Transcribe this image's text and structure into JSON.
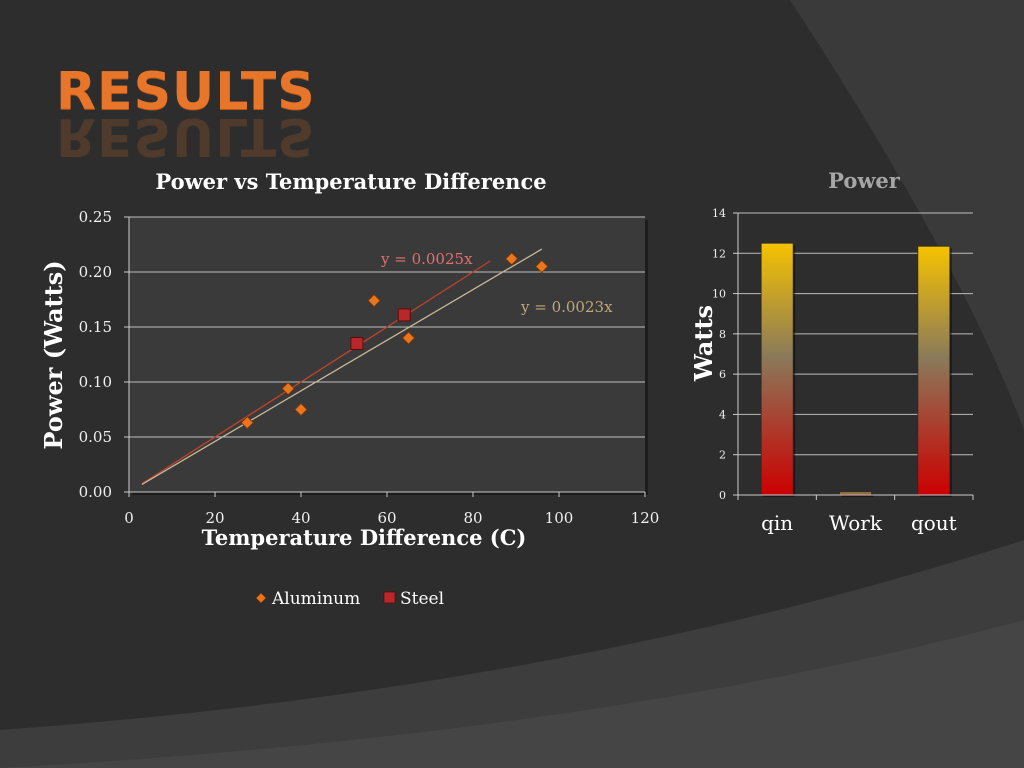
{
  "slide": {
    "title": "RESULTS"
  },
  "chart_data": [
    {
      "type": "scatter",
      "title": "Power  vs Temperature Difference",
      "xlabel": "Temperature Difference (C)",
      "ylabel": "Power (Watts)",
      "xlim": [
        0,
        120
      ],
      "ylim": [
        0,
        0.25
      ],
      "x_ticks": [
        "0",
        "20",
        "40",
        "60",
        "80",
        "100",
        "120"
      ],
      "y_ticks": [
        "0.00",
        "0.05",
        "0.10",
        "0.15",
        "0.20",
        "0.25"
      ],
      "grid": "horizontal",
      "legend_position": "bottom",
      "series": [
        {
          "name": "Aluminum",
          "color": "#e8761e",
          "marker": "diamond",
          "points": [
            [
              27.5,
              0.063
            ],
            [
              37,
              0.094
            ],
            [
              40,
              0.075
            ],
            [
              57,
              0.174
            ],
            [
              65,
              0.14
            ],
            [
              89,
              0.212
            ],
            [
              96,
              0.205
            ]
          ]
        },
        {
          "name": "Steel",
          "color": "#b8282a",
          "marker": "square",
          "points": [
            [
              53,
              0.135
            ],
            [
              64,
              0.161
            ]
          ]
        }
      ],
      "trendlines": [
        {
          "label": "y = 0.0025x",
          "slope": 0.0025,
          "x_range": [
            3,
            84
          ],
          "color": "#c0432a",
          "label_color": "#e07070"
        },
        {
          "label": "y = 0.0023x",
          "slope": 0.0023,
          "x_range": [
            3,
            96
          ],
          "color": "#c8b89a",
          "label_color": "#c0a878"
        }
      ]
    },
    {
      "type": "bar",
      "title": "Power",
      "ylabel": "Watts",
      "categories": [
        "qin",
        "Work",
        "qout"
      ],
      "values": [
        12.5,
        0.15,
        12.35
      ],
      "ylim": [
        0,
        14
      ],
      "y_ticks": [
        "0",
        "2",
        "4",
        "6",
        "8",
        "10",
        "12",
        "14"
      ],
      "grid": "horizontal",
      "bar_gradient": [
        "#f6c200",
        "#cc0000"
      ]
    }
  ]
}
